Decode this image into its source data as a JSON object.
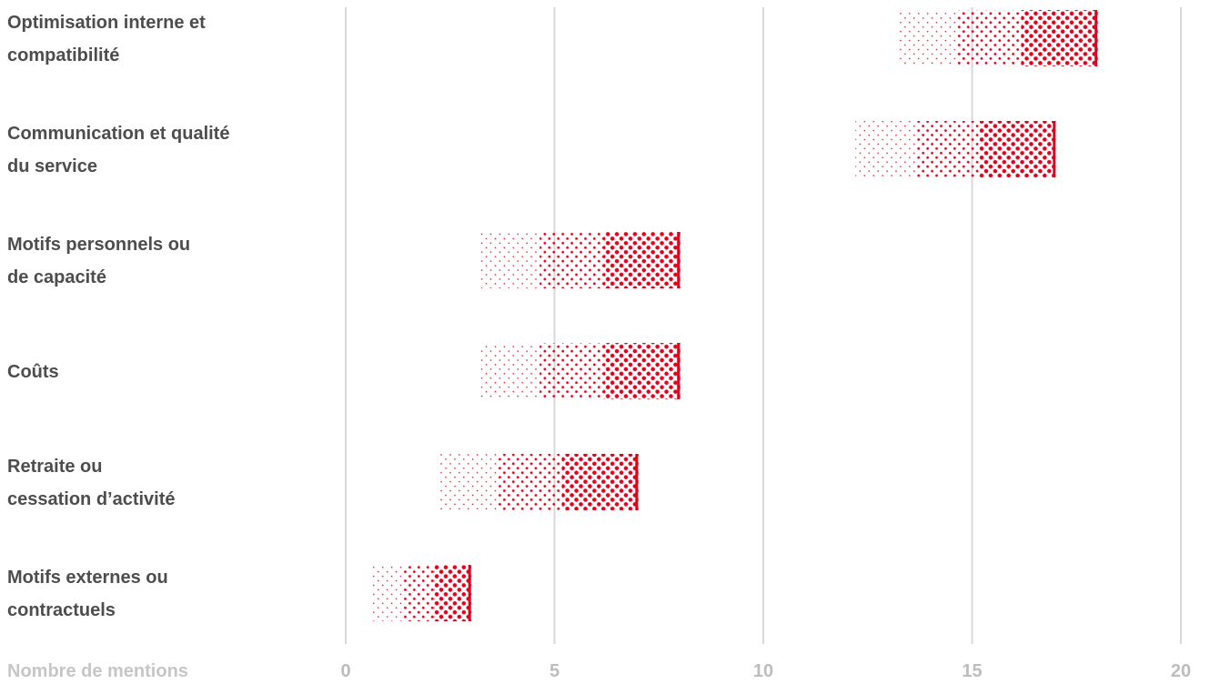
{
  "chart_data": {
    "type": "bar",
    "orientation": "horizontal",
    "style": "halftone-gradient",
    "categories": [
      [
        "Optimisation interne et",
        "compatibilité"
      ],
      [
        "Communication et qualité",
        "du service"
      ],
      [
        "Motifs personnels ou",
        "de capacité"
      ],
      [
        "Coûts"
      ],
      [
        "Retraite ou",
        "cessation d’activité"
      ],
      [
        "Motifs externes ou",
        "contractuels"
      ]
    ],
    "values": [
      18,
      17,
      8,
      8,
      7,
      3
    ],
    "xlabel": "Nombre de mentions",
    "xlim": [
      0,
      20
    ],
    "xticks": [
      0,
      5,
      10,
      15,
      20
    ],
    "grid": true,
    "bar_color": "#e3001b",
    "grid_color": "#d9d9d9",
    "label_color": "#4d4d4d",
    "tick_color": "#bdbdbd"
  }
}
